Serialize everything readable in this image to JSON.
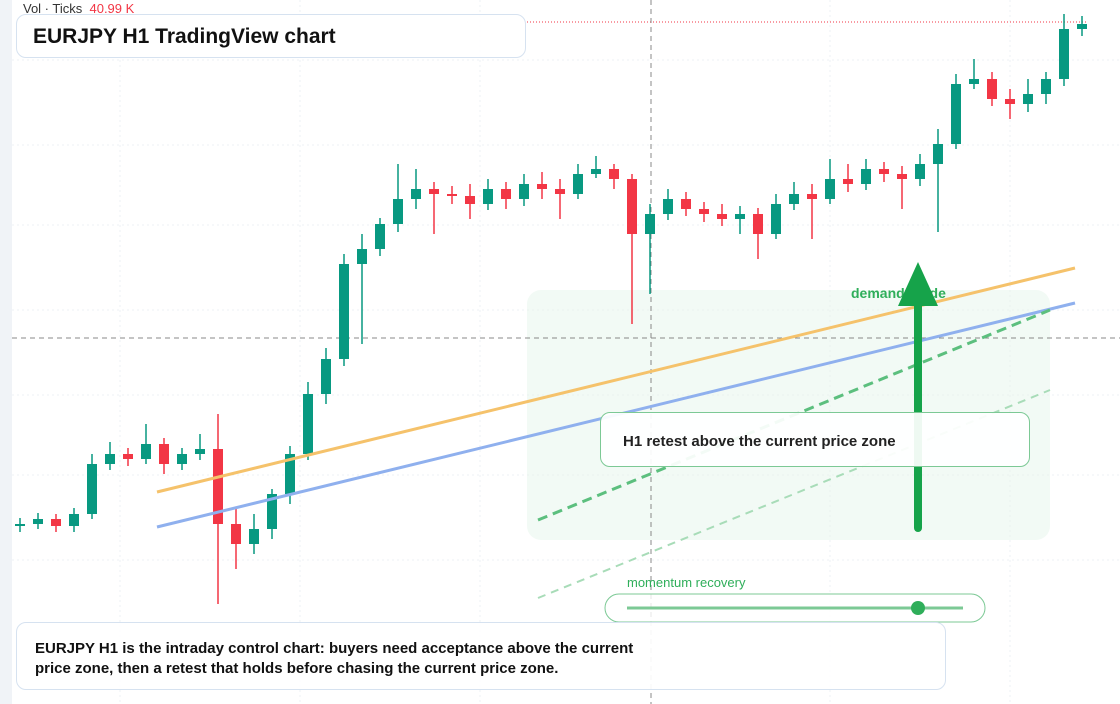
{
  "header": {
    "volume_label": "Vol · Ticks",
    "volume_value": "40.99 K"
  },
  "title": "EURJPY H1 TradingView chart",
  "chart_data": {
    "type": "candlestick",
    "up_color": "#089981",
    "down_color": "#f23645",
    "ylim": [
      0,
      700
    ],
    "candles": [
      [
        178,
        186,
        172,
        180
      ],
      [
        180,
        191,
        175,
        185
      ],
      [
        185,
        190,
        172,
        178
      ],
      [
        178,
        196,
        172,
        190
      ],
      [
        190,
        250,
        185,
        240
      ],
      [
        240,
        262,
        234,
        250
      ],
      [
        250,
        256,
        238,
        245
      ],
      [
        245,
        280,
        240,
        260
      ],
      [
        260,
        266,
        230,
        240
      ],
      [
        240,
        256,
        234,
        250
      ],
      [
        250,
        270,
        244,
        255
      ],
      [
        255,
        290,
        100,
        180
      ],
      [
        180,
        195,
        135,
        160
      ],
      [
        160,
        190,
        150,
        175
      ],
      [
        175,
        215,
        165,
        210
      ],
      [
        210,
        258,
        200,
        250
      ],
      [
        250,
        322,
        244,
        310
      ],
      [
        310,
        356,
        300,
        345
      ],
      [
        345,
        450,
        338,
        440
      ],
      [
        440,
        470,
        360,
        455
      ],
      [
        455,
        486,
        448,
        480
      ],
      [
        480,
        540,
        472,
        505
      ],
      [
        505,
        535,
        495,
        515
      ],
      [
        515,
        522,
        470,
        510
      ],
      [
        510,
        518,
        500,
        508
      ],
      [
        508,
        520,
        485,
        500
      ],
      [
        500,
        525,
        494,
        515
      ],
      [
        515,
        522,
        495,
        505
      ],
      [
        505,
        530,
        498,
        520
      ],
      [
        520,
        532,
        505,
        515
      ],
      [
        515,
        525,
        485,
        510
      ],
      [
        510,
        540,
        505,
        530
      ],
      [
        530,
        548,
        526,
        535
      ],
      [
        535,
        540,
        515,
        525
      ],
      [
        525,
        530,
        380,
        470
      ],
      [
        470,
        500,
        410,
        490
      ],
      [
        490,
        515,
        484,
        505
      ],
      [
        505,
        512,
        488,
        495
      ],
      [
        495,
        502,
        482,
        490
      ],
      [
        490,
        500,
        478,
        485
      ],
      [
        485,
        498,
        470,
        490
      ],
      [
        490,
        496,
        445,
        470
      ],
      [
        470,
        510,
        465,
        500
      ],
      [
        500,
        522,
        494,
        510
      ],
      [
        510,
        520,
        465,
        505
      ],
      [
        505,
        545,
        500,
        525
      ],
      [
        525,
        540,
        512,
        520
      ],
      [
        520,
        545,
        514,
        535
      ],
      [
        535,
        542,
        522,
        530
      ],
      [
        530,
        538,
        495,
        525
      ],
      [
        525,
        550,
        518,
        540
      ],
      [
        540,
        575,
        472,
        560
      ],
      [
        560,
        630,
        555,
        620
      ],
      [
        620,
        645,
        615,
        625
      ],
      [
        625,
        632,
        598,
        605
      ],
      [
        605,
        615,
        585,
        600
      ],
      [
        600,
        625,
        592,
        610
      ],
      [
        610,
        632,
        600,
        625
      ],
      [
        625,
        690,
        618,
        675
      ],
      [
        675,
        688,
        668,
        680
      ]
    ]
  },
  "annotations": {
    "zone_label": "demand guide",
    "retest_label": "H1 retest above the current price zone",
    "momentum_label": "momentum recovery"
  },
  "note": "EURJPY H1 is the intraday control chart: buyers need acceptance above the current price zone, then a retest that holds before chasing the current price zone."
}
